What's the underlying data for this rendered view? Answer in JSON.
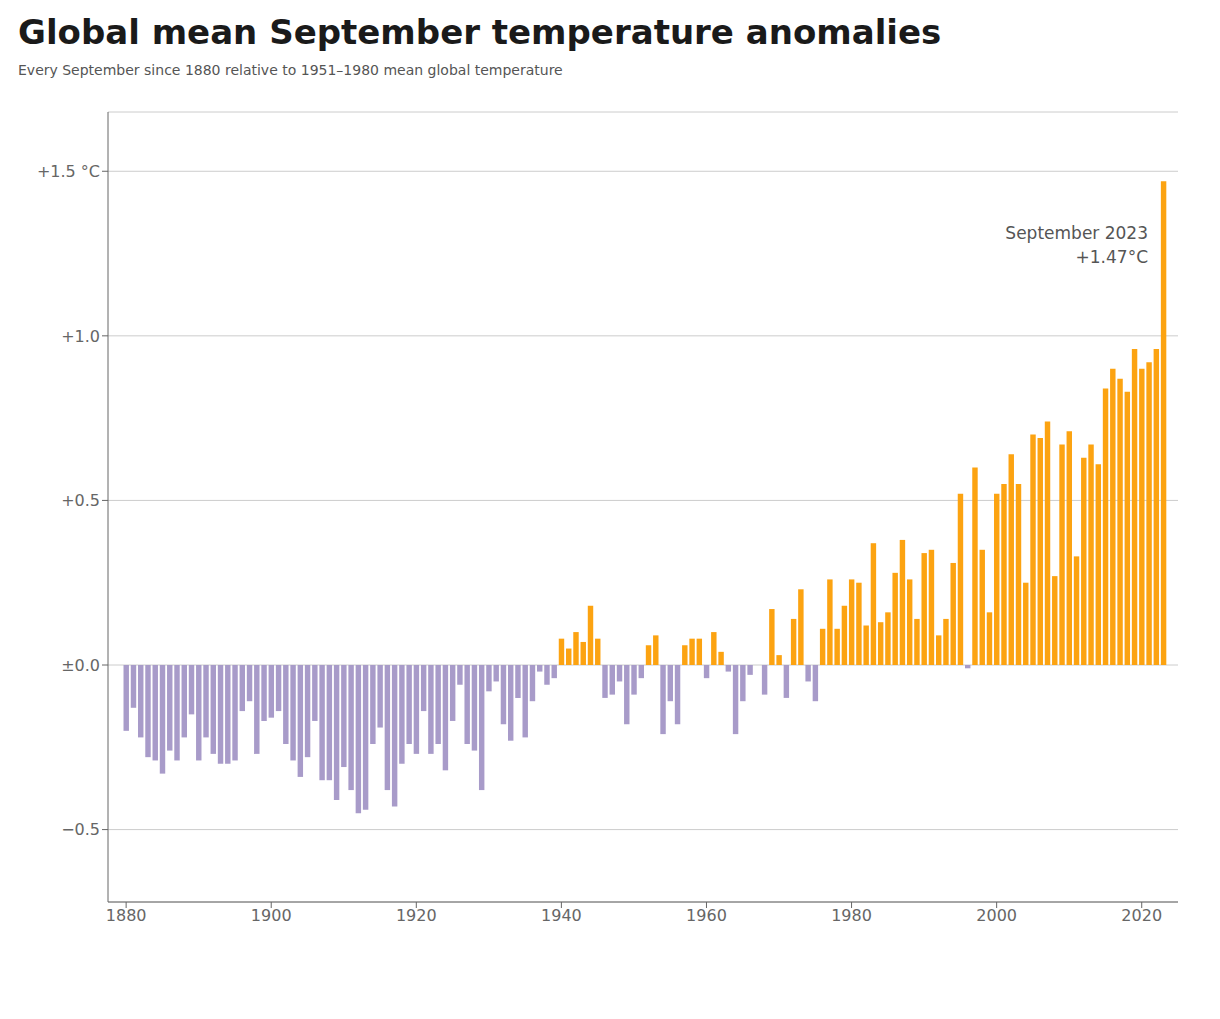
{
  "chart_data": {
    "type": "bar",
    "title": "Global mean September temperature anomalies",
    "subtitle": "Every September since 1880 relative to 1951–1980 mean global temperature",
    "annotation": [
      "September 2023",
      "+1.47°C"
    ],
    "x": [
      1880,
      1881,
      1882,
      1883,
      1884,
      1885,
      1886,
      1887,
      1888,
      1889,
      1890,
      1891,
      1892,
      1893,
      1894,
      1895,
      1896,
      1897,
      1898,
      1899,
      1900,
      1901,
      1902,
      1903,
      1904,
      1905,
      1906,
      1907,
      1908,
      1909,
      1910,
      1911,
      1912,
      1913,
      1914,
      1915,
      1916,
      1917,
      1918,
      1919,
      1920,
      1921,
      1922,
      1923,
      1924,
      1925,
      1926,
      1927,
      1928,
      1929,
      1930,
      1931,
      1932,
      1933,
      1934,
      1935,
      1936,
      1937,
      1938,
      1939,
      1940,
      1941,
      1942,
      1943,
      1944,
      1945,
      1946,
      1947,
      1948,
      1949,
      1950,
      1951,
      1952,
      1953,
      1954,
      1955,
      1956,
      1957,
      1958,
      1959,
      1960,
      1961,
      1962,
      1963,
      1964,
      1965,
      1966,
      1967,
      1968,
      1969,
      1970,
      1971,
      1972,
      1973,
      1974,
      1975,
      1976,
      1977,
      1978,
      1979,
      1980,
      1981,
      1982,
      1983,
      1984,
      1985,
      1986,
      1987,
      1988,
      1989,
      1990,
      1991,
      1992,
      1993,
      1994,
      1995,
      1996,
      1997,
      1998,
      1999,
      2000,
      2001,
      2002,
      2003,
      2004,
      2005,
      2006,
      2007,
      2008,
      2009,
      2010,
      2011,
      2012,
      2013,
      2014,
      2015,
      2016,
      2017,
      2018,
      2019,
      2020,
      2021,
      2022,
      2023
    ],
    "values": [
      -0.2,
      -0.13,
      -0.22,
      -0.28,
      -0.29,
      -0.33,
      -0.26,
      -0.29,
      -0.22,
      -0.15,
      -0.29,
      -0.22,
      -0.27,
      -0.3,
      -0.3,
      -0.29,
      -0.14,
      -0.11,
      -0.27,
      -0.17,
      -0.16,
      -0.14,
      -0.24,
      -0.29,
      -0.34,
      -0.28,
      -0.17,
      -0.35,
      -0.35,
      -0.41,
      -0.31,
      -0.38,
      -0.45,
      -0.44,
      -0.24,
      -0.19,
      -0.38,
      -0.43,
      -0.3,
      -0.24,
      -0.27,
      -0.14,
      -0.27,
      -0.24,
      -0.32,
      -0.17,
      -0.06,
      -0.24,
      -0.26,
      -0.38,
      -0.08,
      -0.05,
      -0.18,
      -0.23,
      -0.1,
      -0.22,
      -0.11,
      -0.02,
      -0.06,
      -0.04,
      0.08,
      0.05,
      0.1,
      0.07,
      0.18,
      0.08,
      -0.1,
      -0.09,
      -0.05,
      -0.18,
      -0.09,
      -0.04,
      0.06,
      0.09,
      -0.21,
      -0.11,
      -0.18,
      0.06,
      0.08,
      0.08,
      -0.04,
      0.1,
      0.04,
      -0.02,
      -0.21,
      -0.11,
      -0.03,
      0.0,
      -0.09,
      0.17,
      0.03,
      -0.1,
      0.14,
      0.23,
      -0.05,
      -0.11,
      0.11,
      0.26,
      0.11,
      0.18,
      0.26,
      0.25,
      0.12,
      0.37,
      0.13,
      0.16,
      0.28,
      0.38,
      0.26,
      0.14,
      0.34,
      0.35,
      0.09,
      0.14,
      0.31,
      0.52,
      -0.01,
      0.6,
      0.35,
      0.16,
      0.52,
      0.55,
      0.64,
      0.55,
      0.25,
      0.7,
      0.69,
      0.74,
      0.27,
      0.67,
      0.71,
      0.33,
      0.63,
      0.67,
      0.61,
      0.84,
      0.9,
      0.87,
      0.83,
      0.96,
      0.9,
      0.92,
      0.96,
      1.47
    ],
    "colors": [
      "#A89BC9",
      "#A89BC9",
      "#A89BC9",
      "#A89BC9",
      "#A89BC9",
      "#A89BC9",
      "#A89BC9",
      "#A89BC9",
      "#A89BC9",
      "#A89BC9",
      "#A89BC9",
      "#A89BC9",
      "#A89BC9",
      "#A89BC9",
      "#A89BC9",
      "#A89BC9",
      "#A89BC9",
      "#A89BC9",
      "#A89BC9",
      "#A89BC9",
      "#A89BC9",
      "#A89BC9",
      "#A89BC9",
      "#A89BC9",
      "#A89BC9",
      "#A89BC9",
      "#A89BC9",
      "#A89BC9",
      "#A89BC9",
      "#A89BC9",
      "#A89BC9",
      "#A89BC9",
      "#A89BC9",
      "#A89BC9",
      "#A89BC9",
      "#A89BC9",
      "#A89BC9",
      "#A89BC9",
      "#A89BC9",
      "#A89BC9",
      "#A89BC9",
      "#A89BC9",
      "#A89BC9",
      "#A89BC9",
      "#A89BC9",
      "#A89BC9",
      "#A89BC9",
      "#A89BC9",
      "#A89BC9",
      "#A89BC9",
      "#A89BC9",
      "#A89BC9",
      "#A89BC9",
      "#A89BC9",
      "#A89BC9",
      "#A89BC9",
      "#A89BC9",
      "#A89BC9",
      "#A89BC9",
      "#A89BC9",
      "#FCA311",
      "#FCA311",
      "#FCA311",
      "#FCA311",
      "#FCA311",
      "#FCA311",
      "#A89BC9",
      "#A89BC9",
      "#A89BC9",
      "#A89BC9",
      "#A89BC9",
      "#A89BC9",
      "#FCA311",
      "#FCA311",
      "#A89BC9",
      "#A89BC9",
      "#A89BC9",
      "#FCA311",
      "#FCA311",
      "#FCA311",
      "#A89BC9",
      "#FCA311",
      "#FCA311",
      "#A89BC9",
      "#A89BC9",
      "#A89BC9",
      "#A89BC9",
      "#FCA311",
      "#A89BC9",
      "#FCA311",
      "#FCA311",
      "#A89BC9",
      "#FCA311",
      "#FCA311",
      "#A89BC9",
      "#A89BC9",
      "#FCA311",
      "#FCA311",
      "#FCA311",
      "#FCA311",
      "#FCA311",
      "#FCA311",
      "#FCA311",
      "#FCA311",
      "#FCA311",
      "#FCA311",
      "#FCA311",
      "#FCA311",
      "#FCA311",
      "#FCA311",
      "#FCA311",
      "#FCA311",
      "#FCA311",
      "#FCA311",
      "#FCA311",
      "#FCA311",
      "#A89BC9",
      "#FCA311",
      "#FCA311",
      "#FCA311",
      "#FCA311",
      "#FCA311",
      "#FCA311",
      "#FCA311",
      "#FCA311",
      "#FCA311",
      "#FCA311",
      "#FCA311",
      "#FCA311",
      "#FCA311",
      "#FCA311",
      "#FCA311",
      "#FCA311",
      "#FCA311",
      "#FCA311",
      "#FCA311",
      "#FCA311",
      "#FCA311",
      "#FCA311",
      "#FCA311",
      "#FCA311",
      "#FCA311",
      "#FCA311",
      "#FCA311"
    ],
    "xlim": [
      1877.5,
      2025
    ],
    "xticks": [
      1880,
      1900,
      1920,
      1940,
      1960,
      1980,
      2000,
      2020
    ],
    "ylim": [
      -0.72,
      1.68
    ],
    "yticks": [
      {
        "value": 1.5,
        "label": "+1.5 °C"
      },
      {
        "value": 1.0,
        "label": "+1.0"
      },
      {
        "value": 0.5,
        "label": "+0.5"
      },
      {
        "value": 0.0,
        "label": "±0.0"
      },
      {
        "value": -0.5,
        "label": "−0.5"
      }
    ],
    "grid": true
  }
}
